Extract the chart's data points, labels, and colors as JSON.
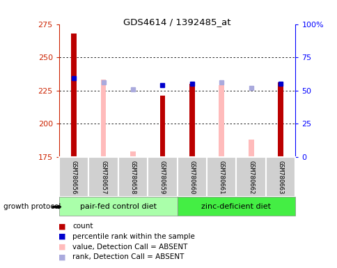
{
  "title": "GDS4614 / 1392485_at",
  "samples": [
    "GSM780656",
    "GSM780657",
    "GSM780658",
    "GSM780659",
    "GSM780660",
    "GSM780661",
    "GSM780662",
    "GSM780663"
  ],
  "count_values": [
    268,
    null,
    null,
    221,
    230,
    null,
    null,
    231
  ],
  "absent_value_bars": [
    null,
    233,
    179,
    null,
    null,
    229,
    188,
    null
  ],
  "percentile_rank": [
    234,
    null,
    null,
    229,
    230,
    null,
    null,
    230
  ],
  "absent_rank": [
    null,
    231,
    226,
    null,
    null,
    231,
    227,
    null
  ],
  "ylim_left": [
    175,
    275
  ],
  "ylim_right": [
    0,
    100
  ],
  "yticks_left": [
    175,
    200,
    225,
    250,
    275
  ],
  "yticks_right": [
    0,
    25,
    50,
    75,
    100
  ],
  "ytick_labels_right": [
    "0",
    "25",
    "50",
    "75",
    "100%"
  ],
  "groups": [
    {
      "label": "pair-fed control diet",
      "indices": [
        0,
        1,
        2,
        3
      ],
      "color": "#aaffaa"
    },
    {
      "label": "zinc-deficient diet",
      "indices": [
        4,
        5,
        6,
        7
      ],
      "color": "#44ee44"
    }
  ],
  "protocol_label": "growth protocol",
  "bar_width": 0.18,
  "count_color": "#bb0000",
  "absent_value_color": "#ffbbbb",
  "percentile_color": "#0000cc",
  "absent_rank_color": "#aaaadd",
  "legend_items": [
    {
      "label": "count",
      "color": "#bb0000"
    },
    {
      "label": "percentile rank within the sample",
      "color": "#0000cc"
    },
    {
      "label": "value, Detection Call = ABSENT",
      "color": "#ffbbbb"
    },
    {
      "label": "rank, Detection Call = ABSENT",
      "color": "#aaaadd"
    }
  ]
}
